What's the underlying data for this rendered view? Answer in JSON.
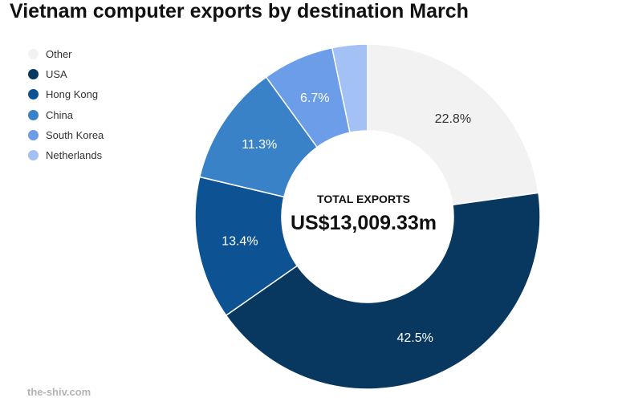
{
  "title": "Vietnam computer exports by destination March",
  "source": "the-shiv.com",
  "center": {
    "label": "TOTAL EXPORTS",
    "value": "US$13,009.33m"
  },
  "chart_data": {
    "type": "pie",
    "title": "Vietnam computer exports by destination March",
    "categories": [
      "Other",
      "USA",
      "Hong Kong",
      "China",
      "South Korea",
      "Netherlands"
    ],
    "values": [
      22.8,
      42.5,
      13.4,
      11.3,
      6.7,
      3.3
    ],
    "data_labels": [
      "22.8%",
      "42.5%",
      "13.4%",
      "11.3%",
      "6.7%",
      ""
    ],
    "colors": [
      "#f2f2f2",
      "#08375f",
      "#0d5292",
      "#3a82c7",
      "#6b9de8",
      "#a3c1f4"
    ],
    "label_colors": [
      "#333333",
      "#ffffff",
      "#ffffff",
      "#ffffff",
      "#ffffff",
      "#ffffff"
    ],
    "donut": true,
    "legend_position": "top-left"
  }
}
